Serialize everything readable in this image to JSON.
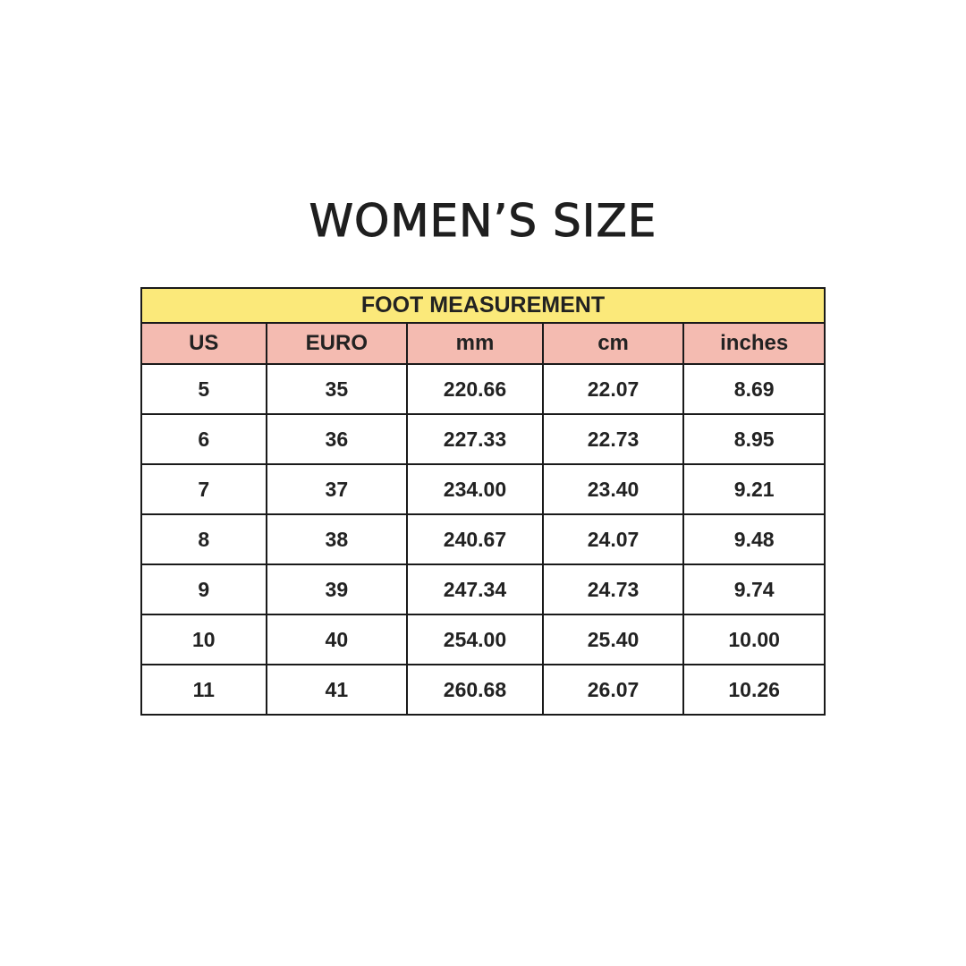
{
  "title": "WOMEN’S SIZE",
  "table": {
    "group_header": "FOOT MEASUREMENT",
    "columns": [
      "US",
      "EURO",
      "mm",
      "cm",
      "inches"
    ],
    "rows": [
      [
        "5",
        "35",
        "220.66",
        "22.07",
        "8.69"
      ],
      [
        "6",
        "36",
        "227.33",
        "22.73",
        "8.95"
      ],
      [
        "7",
        "37",
        "234.00",
        "23.40",
        "9.21"
      ],
      [
        "8",
        "38",
        "240.67",
        "24.07",
        "9.48"
      ],
      [
        "9",
        "39",
        "247.34",
        "24.73",
        "9.74"
      ],
      [
        "10",
        "40",
        "254.00",
        "25.40",
        "10.00"
      ],
      [
        "11",
        "41",
        "260.68",
        "26.07",
        "10.26"
      ]
    ]
  },
  "colors": {
    "group_header_bg": "#fbe97a",
    "column_header_bg": "#f4bbb1"
  }
}
